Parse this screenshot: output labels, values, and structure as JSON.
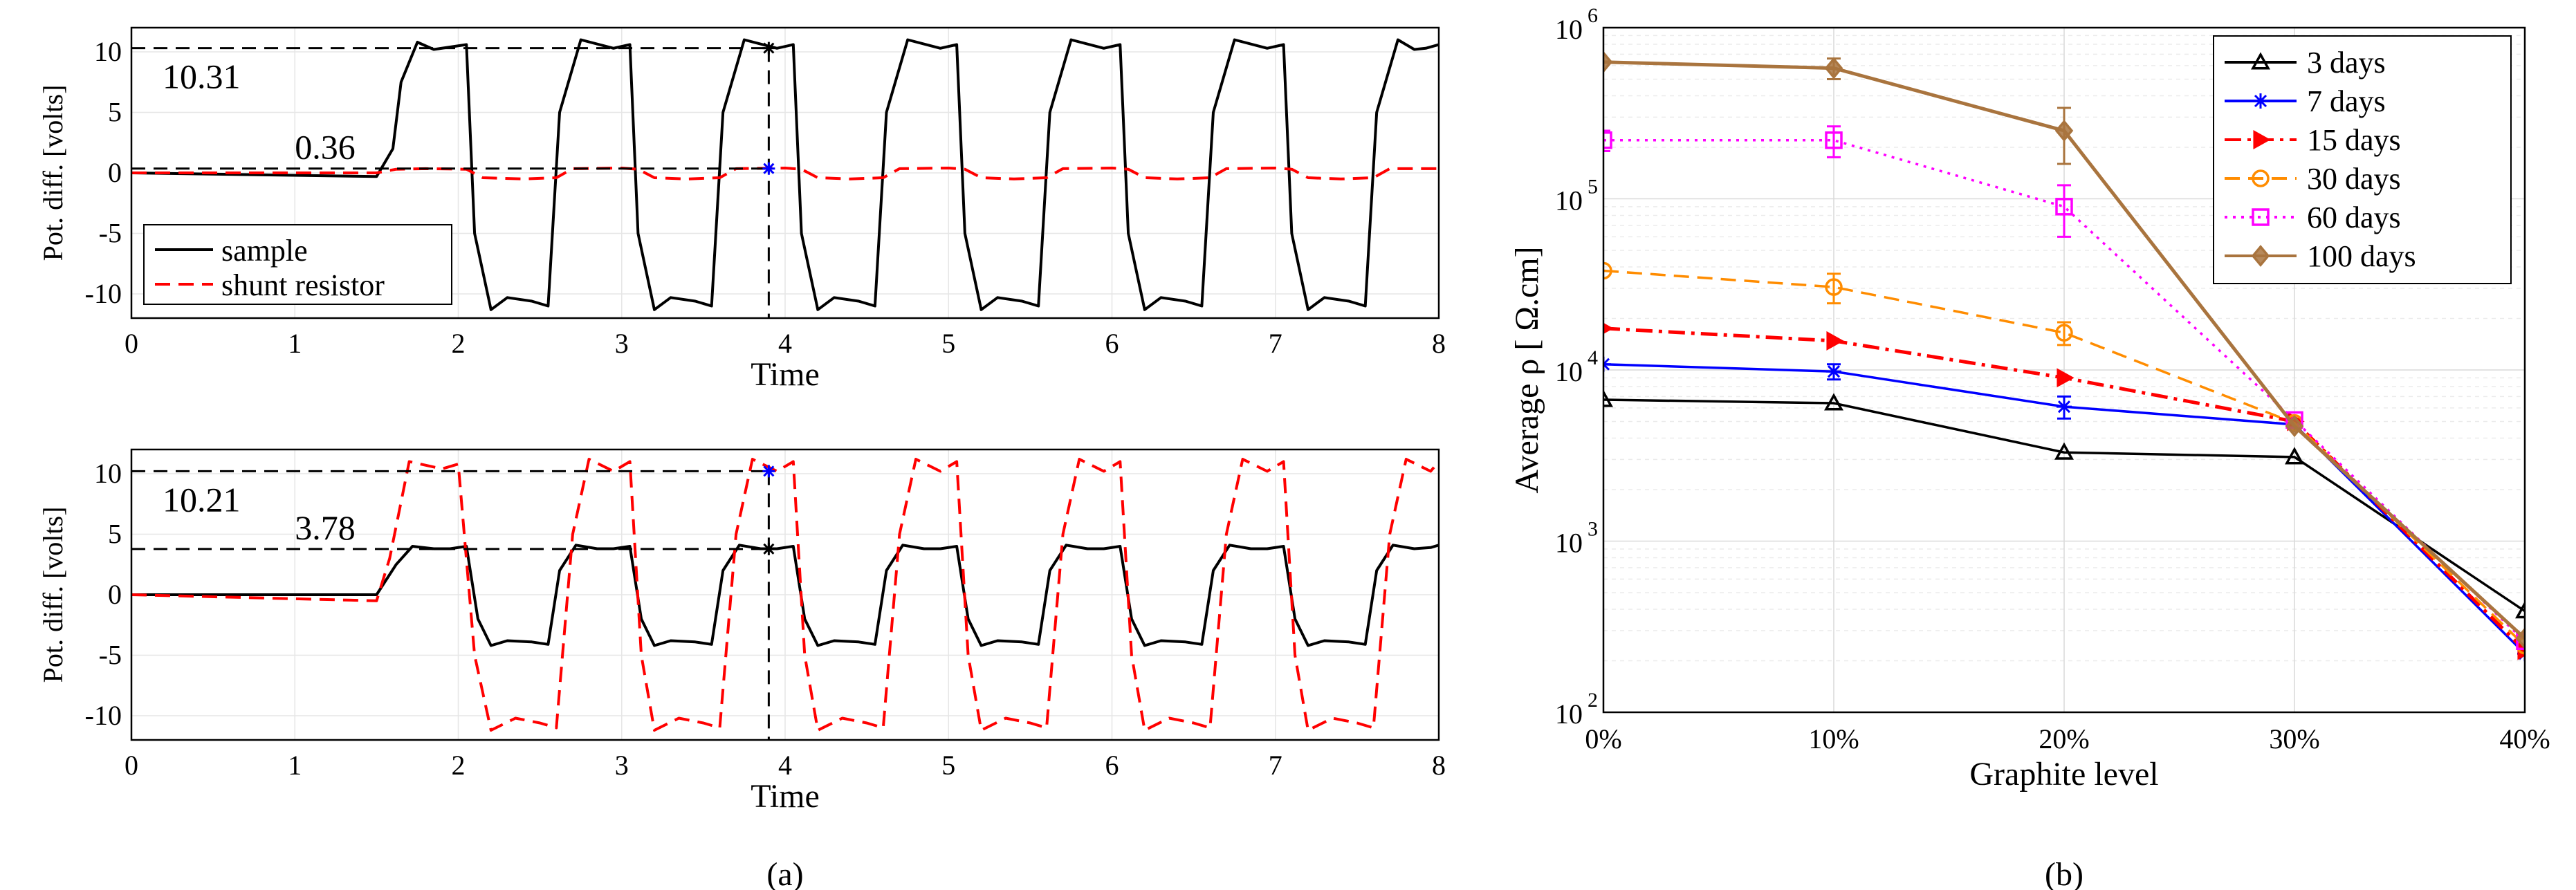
{
  "figure": {
    "caption_a": "(a)",
    "caption_b": "(b)"
  },
  "chart_data": [
    {
      "id": "top",
      "type": "line",
      "xlabel": "Time",
      "ylabel": "Pot. diff. [volts]",
      "xlim": [
        0,
        8
      ],
      "ylim": [
        -12,
        12
      ],
      "xticks": [
        0,
        1,
        2,
        3,
        4,
        5,
        6,
        7,
        8
      ],
      "yticks": [
        10,
        5,
        0,
        -5,
        -10
      ],
      "ytick_labels": [
        "10",
        "5",
        "0",
        "-5",
        "-10"
      ],
      "grid": true,
      "legend_position": "bottom-left",
      "annotations": [
        {
          "label": "10.31",
          "value": 10.31
        },
        {
          "label": "0.36",
          "value": 0.36
        }
      ],
      "cursor": {
        "x": 3.9,
        "markers": [
          {
            "y": 10.31,
            "color": "#000000"
          },
          {
            "y": 0.36,
            "color": "#0000ff"
          }
        ]
      },
      "series": [
        {
          "name": "sample",
          "color": "#000000",
          "dash": "solid",
          "x": [
            0,
            1.5,
            1.6,
            1.65,
            1.75,
            1.85,
            1.95,
            2.05,
            2.1,
            2.2,
            2.3,
            2.45,
            2.55,
            2.62,
            2.75,
            2.95,
            3.05,
            3.1,
            3.2,
            3.3,
            3.45,
            3.55,
            3.62,
            3.75,
            3.95,
            4.05,
            4.1,
            4.2,
            4.3,
            4.45,
            4.55,
            4.62,
            4.75,
            4.95,
            5.05,
            5.1,
            5.2,
            5.3,
            5.45,
            5.55,
            5.62,
            5.75,
            5.95,
            6.05,
            6.1,
            6.2,
            6.3,
            6.45,
            6.55,
            6.62,
            6.75,
            6.95,
            7.05,
            7.1,
            7.2,
            7.3,
            7.45,
            7.55,
            7.62,
            7.75,
            7.85,
            7.92,
            8.0
          ],
          "y": [
            0,
            -0.3,
            2,
            7.5,
            10.8,
            10.2,
            10.4,
            10.6,
            -5,
            -11.3,
            -10.3,
            -10.6,
            -11,
            5,
            11,
            10.3,
            10.6,
            -5,
            -11.3,
            -10.3,
            -10.6,
            -11,
            5,
            11,
            10.3,
            10.6,
            -5,
            -11.3,
            -10.3,
            -10.6,
            -11,
            5,
            11,
            10.3,
            10.6,
            -5,
            -11.3,
            -10.3,
            -10.6,
            -11,
            5,
            11,
            10.3,
            10.6,
            -5,
            -11.3,
            -10.3,
            -10.6,
            -11,
            5,
            11,
            10.3,
            10.6,
            -5,
            -11.3,
            -10.3,
            -10.6,
            -11,
            5,
            11,
            10.2,
            10.3,
            10.6
          ]
        },
        {
          "name": "shunt resistor",
          "color": "#ff0000",
          "dash": "dashed",
          "x": [
            0,
            1.5,
            1.62,
            1.8,
            2.05,
            2.15,
            2.4,
            2.6,
            2.7,
            3.0,
            3.1,
            3.2,
            3.4,
            3.6,
            3.7,
            4.0,
            4.1,
            4.2,
            4.4,
            4.6,
            4.7,
            5.0,
            5.1,
            5.2,
            5.4,
            5.6,
            5.7,
            6.0,
            6.1,
            6.2,
            6.4,
            6.6,
            6.7,
            7.0,
            7.1,
            7.2,
            7.4,
            7.6,
            7.7,
            8.0
          ],
          "y": [
            0,
            0,
            0.3,
            0.35,
            0.3,
            -0.4,
            -0.5,
            -0.4,
            0.35,
            0.4,
            0.3,
            -0.4,
            -0.5,
            -0.4,
            0.35,
            0.4,
            0.3,
            -0.4,
            -0.5,
            -0.4,
            0.35,
            0.4,
            0.3,
            -0.4,
            -0.5,
            -0.4,
            0.35,
            0.4,
            0.3,
            -0.4,
            -0.5,
            -0.4,
            0.35,
            0.4,
            0.3,
            -0.4,
            -0.5,
            -0.4,
            0.35,
            0.35
          ]
        }
      ]
    },
    {
      "id": "bottom",
      "type": "line",
      "xlabel": "Time",
      "ylabel": "Pot. diff. [volts]",
      "xlim": [
        0,
        8
      ],
      "ylim": [
        -12,
        12
      ],
      "xticks": [
        0,
        1,
        2,
        3,
        4,
        5,
        6,
        7,
        8
      ],
      "yticks": [
        10,
        5,
        0,
        -5,
        -10
      ],
      "ytick_labels": [
        "10",
        "5",
        "0",
        "-5",
        "-10"
      ],
      "grid": true,
      "annotations": [
        {
          "label": "10.21",
          "value": 10.21
        },
        {
          "label": "3.78",
          "value": 3.78
        }
      ],
      "cursor": {
        "x": 3.9,
        "markers": [
          {
            "y": 10.21,
            "color": "#0000ff"
          },
          {
            "y": 3.78,
            "color": "#000000"
          }
        ]
      },
      "series": [
        {
          "name": "sample",
          "color": "#000000",
          "dash": "solid",
          "x": [
            0,
            1.5,
            1.62,
            1.72,
            1.85,
            1.95,
            2.05,
            2.12,
            2.2,
            2.3,
            2.45,
            2.55,
            2.62,
            2.72,
            2.85,
            2.95,
            3.05,
            3.12,
            3.2,
            3.3,
            3.45,
            3.55,
            3.62,
            3.72,
            3.85,
            3.95,
            4.05,
            4.12,
            4.2,
            4.3,
            4.45,
            4.55,
            4.62,
            4.72,
            4.85,
            4.95,
            5.05,
            5.12,
            5.2,
            5.3,
            5.45,
            5.55,
            5.62,
            5.72,
            5.85,
            5.95,
            6.05,
            6.12,
            6.2,
            6.3,
            6.45,
            6.55,
            6.62,
            6.72,
            6.85,
            6.95,
            7.05,
            7.12,
            7.2,
            7.3,
            7.45,
            7.55,
            7.62,
            7.72,
            7.85,
            7.95,
            8.0
          ],
          "y": [
            0,
            0,
            2.5,
            4.0,
            3.8,
            3.8,
            4.0,
            -2,
            -4.2,
            -3.8,
            -3.9,
            -4.1,
            2,
            4.1,
            3.8,
            3.8,
            4.0,
            -2,
            -4.2,
            -3.8,
            -3.9,
            -4.1,
            2,
            4.1,
            3.8,
            3.8,
            4.0,
            -2,
            -4.2,
            -3.8,
            -3.9,
            -4.1,
            2,
            4.1,
            3.8,
            3.8,
            4.0,
            -2,
            -4.2,
            -3.8,
            -3.9,
            -4.1,
            2,
            4.1,
            3.8,
            3.8,
            4.0,
            -2,
            -4.2,
            -3.8,
            -3.9,
            -4.1,
            2,
            4.1,
            3.8,
            3.8,
            4.0,
            -2,
            -4.2,
            -3.8,
            -3.9,
            -4.1,
            2,
            4.1,
            3.8,
            3.9,
            4.1
          ]
        },
        {
          "name": "shunt resistor",
          "color": "#ff0000",
          "dash": "dashed",
          "x": [
            0,
            1.5,
            1.58,
            1.7,
            1.9,
            2.0,
            2.1,
            2.2,
            2.35,
            2.5,
            2.6,
            2.7,
            2.8,
            2.95,
            3.05,
            3.12,
            3.2,
            3.35,
            3.5,
            3.6,
            3.7,
            3.8,
            3.95,
            4.05,
            4.12,
            4.2,
            4.35,
            4.5,
            4.6,
            4.7,
            4.8,
            4.95,
            5.05,
            5.12,
            5.2,
            5.35,
            5.5,
            5.6,
            5.7,
            5.8,
            5.95,
            6.05,
            6.12,
            6.2,
            6.35,
            6.5,
            6.6,
            6.7,
            6.8,
            6.95,
            7.05,
            7.12,
            7.2,
            7.35,
            7.5,
            7.6,
            7.7,
            7.8,
            7.95,
            8.0
          ],
          "y": [
            0,
            -0.5,
            3,
            11,
            10.4,
            10.8,
            -5,
            -11.2,
            -10.2,
            -10.6,
            -11,
            5,
            11.2,
            10.2,
            11,
            -5,
            -11.2,
            -10.2,
            -10.6,
            -11,
            5,
            11.2,
            10.2,
            11,
            -5,
            -11.2,
            -10.2,
            -10.6,
            -11,
            5,
            11.2,
            10.2,
            11,
            -5,
            -11.2,
            -10.2,
            -10.6,
            -11,
            5,
            11.2,
            10.2,
            11,
            -5,
            -11.2,
            -10.2,
            -10.6,
            -11,
            5,
            11.2,
            10.2,
            11,
            -5,
            -11.2,
            -10.2,
            -10.6,
            -11,
            5,
            11.2,
            10.2,
            11
          ]
        }
      ]
    },
    {
      "id": "right",
      "type": "line",
      "yscale": "log",
      "xlabel": "Graphite level",
      "ylabel": "Average ρ [ Ω.cm]",
      "categories": [
        "0%",
        "10%",
        "20%",
        "30%",
        "40%"
      ],
      "x": [
        0,
        10,
        20,
        30,
        40
      ],
      "xlim": [
        0,
        40
      ],
      "ylim": [
        100,
        1000000
      ],
      "ytick_values": [
        100,
        1000,
        10000,
        100000,
        1000000
      ],
      "ytick_base": "10",
      "ytick_exp": [
        "2",
        "3",
        "4",
        "5",
        "6"
      ],
      "grid": true,
      "legend_position": "top-right",
      "series": [
        {
          "name": "3 days",
          "color": "#000000",
          "dash": "solid",
          "marker": "triangle",
          "values": [
            6700,
            6400,
            3300,
            3100,
            390
          ],
          "err": [
            0,
            0,
            0,
            0,
            0
          ]
        },
        {
          "name": "7 days",
          "color": "#0000ff",
          "dash": "solid",
          "marker": "asterisk",
          "values": [
            10800,
            9800,
            6100,
            4800,
            220
          ],
          "err": [
            0,
            1000,
            900,
            0,
            0
          ]
        },
        {
          "name": "15 days",
          "color": "#ff0000",
          "dash": "dashdot",
          "marker": "triangle-right",
          "values": [
            17500,
            14800,
            9000,
            5000,
            230
          ],
          "err": [
            0,
            0,
            0,
            0,
            0
          ]
        },
        {
          "name": "30 days",
          "color": "#ff8c00",
          "dash": "dashed",
          "marker": "circle",
          "values": [
            38000,
            30500,
            16500,
            4900,
            245
          ],
          "err": [
            0,
            6000,
            2500,
            0,
            0
          ]
        },
        {
          "name": "60 days",
          "color": "#ff00ff",
          "dash": "dotted",
          "marker": "square",
          "values": [
            220000,
            220000,
            90000,
            5100,
            260
          ],
          "err": [
            30000,
            45000,
            30000,
            0,
            0
          ]
        },
        {
          "name": "100 days",
          "color": "#a9743e",
          "dash": "solid",
          "marker": "diamond",
          "values": [
            630000,
            580000,
            250000,
            4700,
            270
          ],
          "err": [
            0,
            80000,
            90000,
            0,
            0
          ]
        }
      ]
    }
  ]
}
